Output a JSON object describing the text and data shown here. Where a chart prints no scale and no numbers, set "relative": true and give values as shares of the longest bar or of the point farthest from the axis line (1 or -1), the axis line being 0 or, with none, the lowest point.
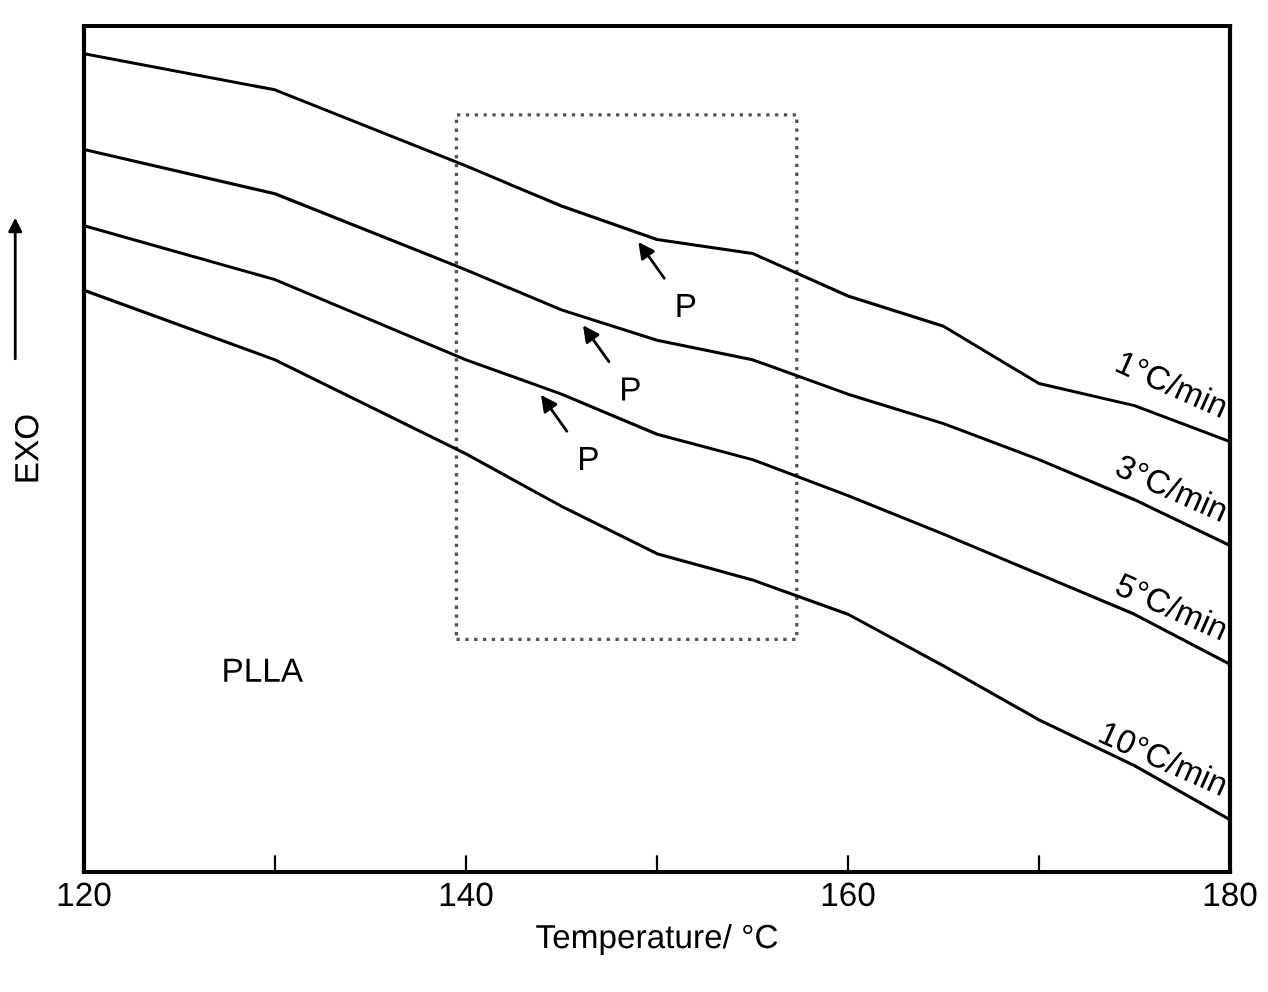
{
  "chart_data": {
    "type": "line",
    "relative": true,
    "xlabel": "Temperature/ °C",
    "ylabel": "EXO",
    "x": [
      120,
      130,
      140,
      145,
      150,
      155,
      160,
      165,
      170,
      175,
      180
    ],
    "xlim": [
      120,
      180
    ],
    "xticks": [
      120,
      {
        "value": 130,
        "label": null
      },
      140,
      {
        "value": 150,
        "label": null
      },
      160,
      {
        "value": 170,
        "label": null
      },
      180
    ],
    "tick_labels": "x",
    "grid": false,
    "legend": false,
    "marker": "none",
    "line_style": "solid",
    "series": [
      {
        "name": "1°C/min",
        "color": "#000000",
        "values": [
          1.0,
          0.956,
          0.863,
          0.814,
          0.773,
          0.756,
          0.704,
          0.667,
          0.597,
          0.57,
          0.526
        ]
      },
      {
        "name": "3°C/min",
        "color": "#000000",
        "values": [
          0.883,
          0.829,
          0.736,
          0.687,
          0.65,
          0.626,
          0.584,
          0.548,
          0.504,
          0.455,
          0.399
        ]
      },
      {
        "name": "5°C/min",
        "color": "#000000",
        "values": [
          0.79,
          0.724,
          0.626,
          0.584,
          0.535,
          0.504,
          0.46,
          0.413,
          0.364,
          0.315,
          0.254
        ]
      },
      {
        "name": "10°C/min",
        "color": "#000000",
        "values": [
          0.711,
          0.626,
          0.511,
          0.447,
          0.389,
          0.357,
          0.315,
          0.252,
          0.186,
          0.13,
          0.064
        ]
      }
    ],
    "annotations": [
      {
        "text": "P",
        "x": 148.6,
        "y": 0.784
      },
      {
        "text": "P",
        "x": 145.7,
        "y": 0.682
      },
      {
        "text": "P",
        "x": 143.5,
        "y": 0.597
      },
      "PLLA"
    ]
  }
}
